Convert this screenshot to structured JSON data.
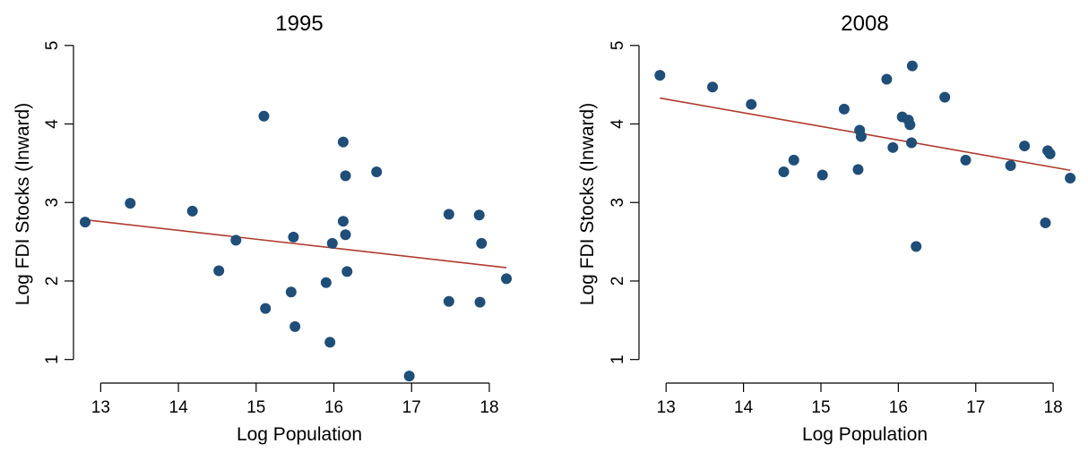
{
  "chart_data": [
    {
      "type": "scatter",
      "title": "1995",
      "xlabel": "Log Population",
      "ylabel": "Log FDI Stocks (Inward)",
      "xlim": [
        12.65,
        18.45
      ],
      "ylim": [
        0.7,
        5.1
      ],
      "xticks": [
        13,
        14,
        15,
        16,
        17,
        18
      ],
      "yticks": [
        1,
        2,
        3,
        4,
        5
      ],
      "grid": false,
      "point_color": "#1f4e79",
      "fit_color": "#b03a2e",
      "points": [
        {
          "x": 12.8,
          "y": 2.75
        },
        {
          "x": 13.38,
          "y": 2.99
        },
        {
          "x": 14.18,
          "y": 2.89
        },
        {
          "x": 14.52,
          "y": 2.13
        },
        {
          "x": 14.74,
          "y": 2.52
        },
        {
          "x": 15.1,
          "y": 4.1
        },
        {
          "x": 15.12,
          "y": 1.65
        },
        {
          "x": 15.45,
          "y": 1.86
        },
        {
          "x": 15.48,
          "y": 2.56
        },
        {
          "x": 15.5,
          "y": 1.42
        },
        {
          "x": 15.9,
          "y": 1.98
        },
        {
          "x": 15.95,
          "y": 1.22
        },
        {
          "x": 15.98,
          "y": 2.48
        },
        {
          "x": 16.12,
          "y": 3.77
        },
        {
          "x": 16.12,
          "y": 2.76
        },
        {
          "x": 16.15,
          "y": 3.34
        },
        {
          "x": 16.15,
          "y": 2.59
        },
        {
          "x": 16.17,
          "y": 2.12
        },
        {
          "x": 16.55,
          "y": 3.39
        },
        {
          "x": 16.97,
          "y": 0.79
        },
        {
          "x": 17.48,
          "y": 2.85
        },
        {
          "x": 17.48,
          "y": 1.74
        },
        {
          "x": 17.87,
          "y": 2.84
        },
        {
          "x": 17.88,
          "y": 1.73
        },
        {
          "x": 17.9,
          "y": 2.48
        },
        {
          "x": 18.22,
          "y": 2.03
        }
      ],
      "fit_line": {
        "x": [
          12.8,
          18.22
        ],
        "y": [
          2.78,
          2.17
        ]
      }
    },
    {
      "type": "scatter",
      "title": "2008",
      "xlabel": "Log Population",
      "ylabel": "Log FDI Stocks (Inward)",
      "xlim": [
        12.65,
        18.45
      ],
      "ylim": [
        0.7,
        5.1
      ],
      "xticks": [
        13,
        14,
        15,
        16,
        17,
        18
      ],
      "yticks": [
        1,
        2,
        3,
        4,
        5
      ],
      "grid": false,
      "point_color": "#1f4e79",
      "fit_color": "#b03a2e",
      "points": [
        {
          "x": 12.92,
          "y": 4.62
        },
        {
          "x": 13.6,
          "y": 4.47
        },
        {
          "x": 14.1,
          "y": 4.25
        },
        {
          "x": 14.52,
          "y": 3.39
        },
        {
          "x": 14.65,
          "y": 3.54
        },
        {
          "x": 15.02,
          "y": 3.35
        },
        {
          "x": 15.3,
          "y": 4.19
        },
        {
          "x": 15.48,
          "y": 3.42
        },
        {
          "x": 15.5,
          "y": 3.92
        },
        {
          "x": 15.52,
          "y": 3.84
        },
        {
          "x": 15.85,
          "y": 4.57
        },
        {
          "x": 15.93,
          "y": 3.7
        },
        {
          "x": 16.05,
          "y": 4.09
        },
        {
          "x": 16.13,
          "y": 4.05
        },
        {
          "x": 16.15,
          "y": 3.99
        },
        {
          "x": 16.17,
          "y": 3.76
        },
        {
          "x": 16.18,
          "y": 4.74
        },
        {
          "x": 16.23,
          "y": 2.44
        },
        {
          "x": 16.6,
          "y": 4.34
        },
        {
          "x": 16.87,
          "y": 3.54
        },
        {
          "x": 17.45,
          "y": 3.47
        },
        {
          "x": 17.63,
          "y": 3.72
        },
        {
          "x": 17.9,
          "y": 2.74
        },
        {
          "x": 17.93,
          "y": 3.66
        },
        {
          "x": 17.96,
          "y": 3.62
        },
        {
          "x": 18.22,
          "y": 3.31
        }
      ],
      "fit_line": {
        "x": [
          12.92,
          18.22
        ],
        "y": [
          4.33,
          3.41
        ]
      }
    }
  ]
}
